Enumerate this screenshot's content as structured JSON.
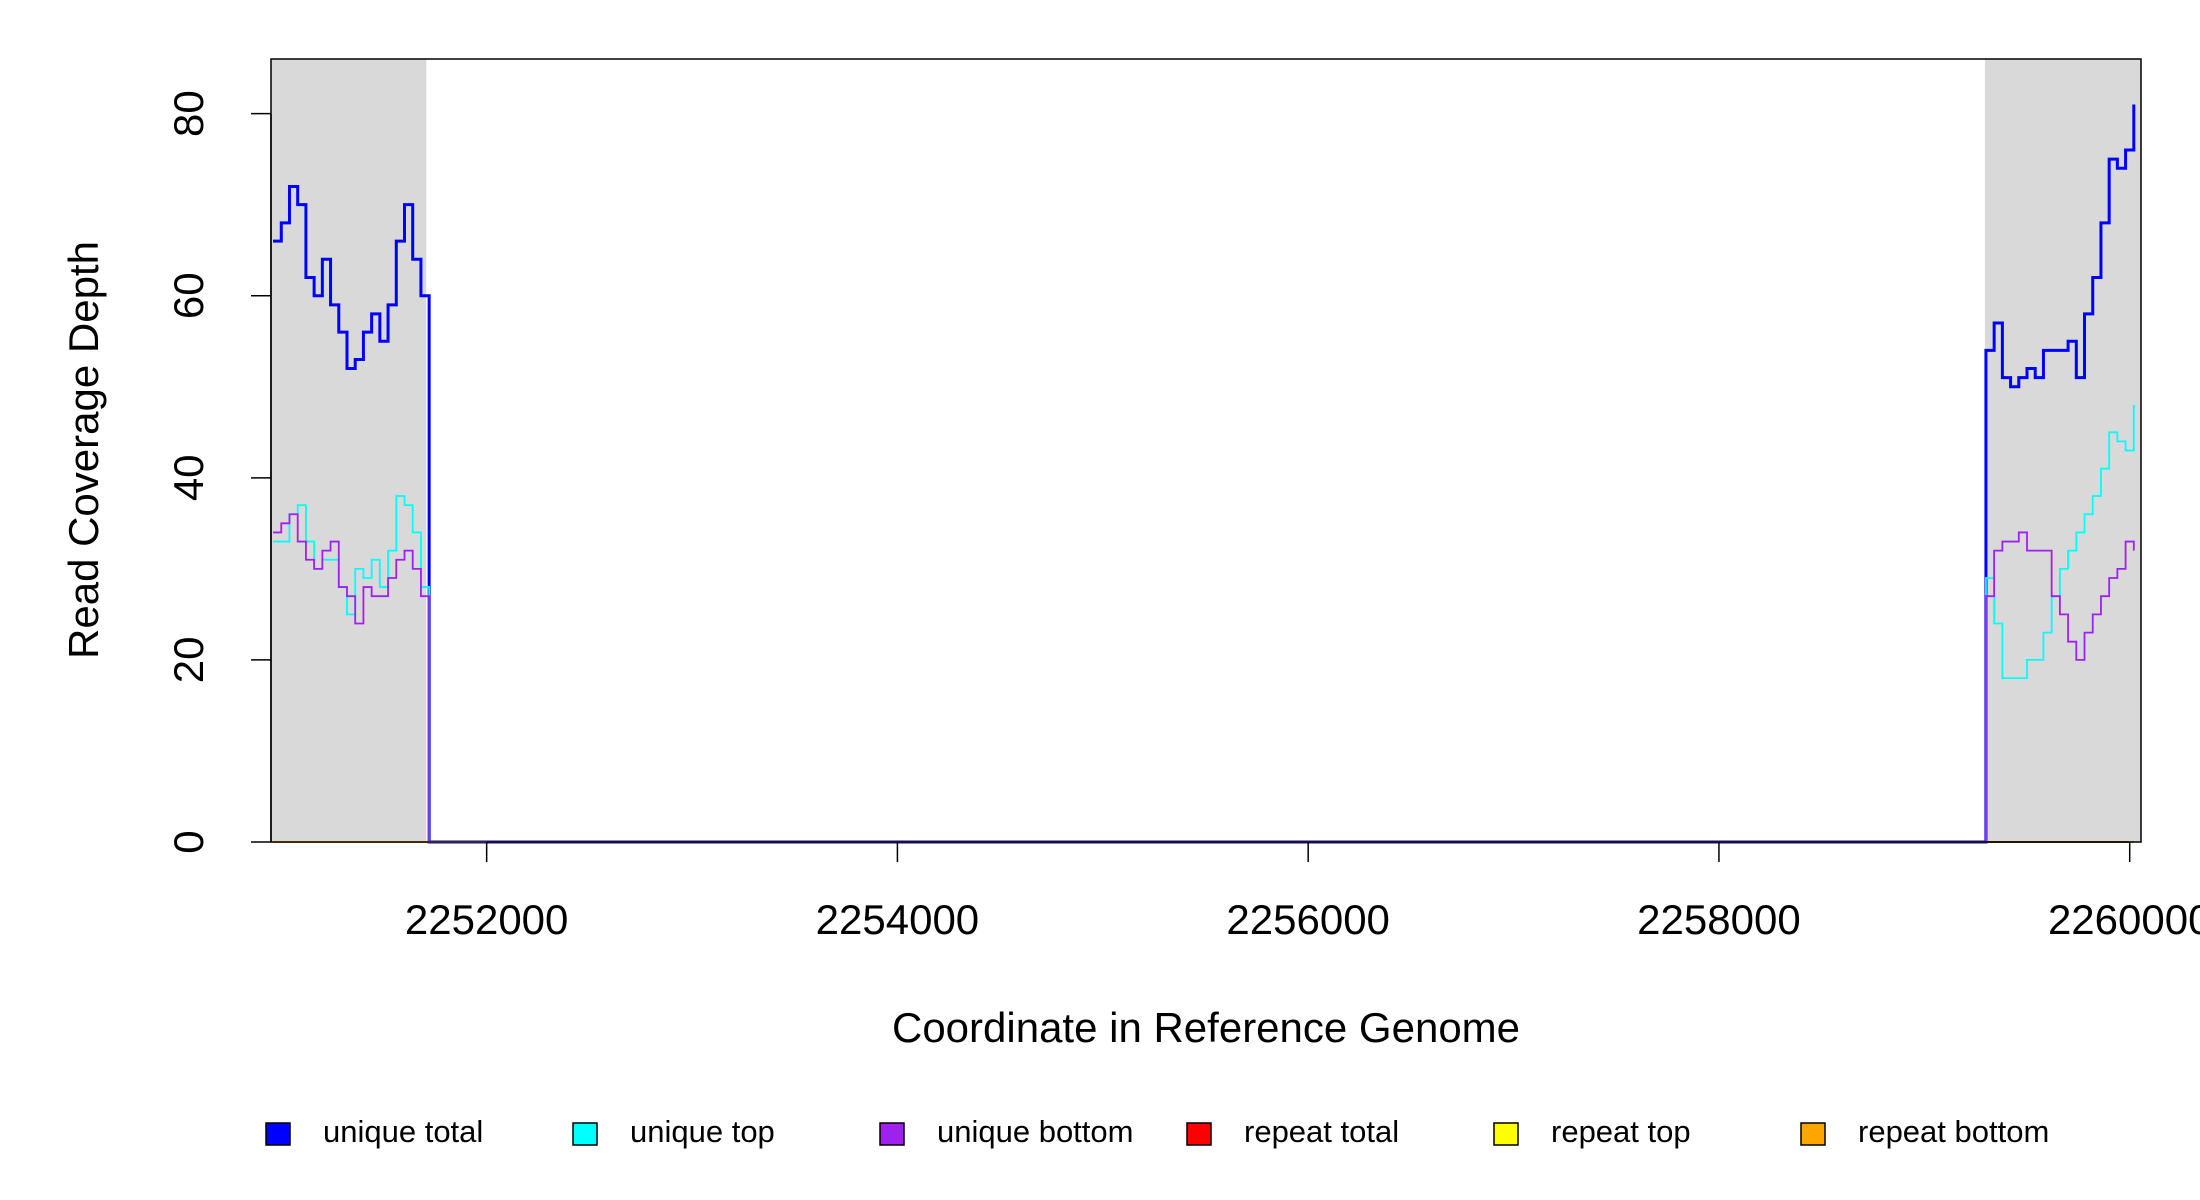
{
  "chart_data": {
    "type": "step",
    "x_label": "Coordinate in Reference Genome",
    "y_label": "Read Coverage Depth",
    "xlim": [
      2250950,
      2260055
    ],
    "ylim": [
      0,
      86
    ],
    "xticks": [
      2252000,
      2254000,
      2256000,
      2258000,
      2260000
    ],
    "yticks": [
      0,
      20,
      40,
      60,
      80
    ],
    "shaded_regions": [
      [
        2250950,
        2251706
      ],
      [
        2259295,
        2260055
      ]
    ],
    "shade_color": "#d9d9d9",
    "legend": "bottom",
    "x": [
      2250960,
      2251000,
      2251040,
      2251080,
      2251120,
      2251160,
      2251200,
      2251240,
      2251280,
      2251320,
      2251360,
      2251400,
      2251440,
      2251480,
      2251520,
      2251560,
      2251600,
      2251640,
      2251680,
      2251720,
      2259280,
      2259300,
      2259340,
      2259380,
      2259420,
      2259460,
      2259500,
      2259540,
      2259580,
      2259620,
      2259660,
      2259700,
      2259740,
      2259780,
      2259820,
      2259860,
      2259900,
      2259940,
      2259980,
      2260020
    ],
    "series": [
      {
        "name": "unique total",
        "color": "#0000ff",
        "values": [
          66,
          68,
          72,
          70,
          62,
          60,
          64,
          59,
          56,
          52,
          53,
          56,
          58,
          55,
          59,
          66,
          70,
          64,
          60,
          0,
          0,
          54,
          57,
          51,
          50,
          51,
          52,
          51,
          54,
          54,
          54,
          55,
          51,
          58,
          62,
          68,
          75,
          74,
          76,
          81
        ]
      },
      {
        "name": "unique top",
        "color": "#00ffff",
        "values": [
          33,
          33,
          36,
          37,
          33,
          30,
          31,
          31,
          28,
          25,
          30,
          29,
          31,
          28,
          32,
          38,
          37,
          34,
          28,
          0,
          0,
          29,
          24,
          18,
          18,
          18,
          20,
          20,
          23,
          27,
          30,
          32,
          34,
          36,
          38,
          41,
          45,
          44,
          43,
          48
        ]
      },
      {
        "name": "unique bottom",
        "color": "#a020f0",
        "values": [
          34,
          35,
          36,
          33,
          31,
          30,
          32,
          33,
          28,
          27,
          24,
          28,
          27,
          27,
          29,
          31,
          32,
          30,
          27,
          0,
          0,
          27,
          32,
          33,
          33,
          34,
          32,
          32,
          32,
          27,
          25,
          22,
          20,
          23,
          25,
          27,
          29,
          30,
          33,
          32
        ]
      },
      {
        "name": "repeat total",
        "color": "#ff0000",
        "values": [
          0,
          0,
          0,
          0,
          0,
          0,
          0,
          0,
          0,
          0,
          0,
          0,
          0,
          0,
          0,
          0,
          0,
          0,
          0,
          0,
          0,
          0,
          0,
          0,
          0,
          0,
          0,
          0,
          0,
          0,
          0,
          0,
          0,
          0,
          0,
          0,
          0,
          0,
          0,
          0
        ]
      },
      {
        "name": "repeat top",
        "color": "#ffff00",
        "values": [
          0,
          0,
          0,
          0,
          0,
          0,
          0,
          0,
          0,
          0,
          0,
          0,
          0,
          0,
          0,
          0,
          0,
          0,
          0,
          0,
          0,
          0,
          0,
          0,
          0,
          0,
          0,
          0,
          0,
          0,
          0,
          0,
          0,
          0,
          0,
          0,
          0,
          0,
          0,
          0
        ]
      },
      {
        "name": "repeat bottom",
        "color": "#ffa500",
        "values": [
          0,
          0,
          0,
          0,
          0,
          0,
          0,
          0,
          0,
          0,
          0,
          0,
          0,
          0,
          0,
          0,
          0,
          0,
          0,
          0,
          0,
          0,
          0,
          0,
          0,
          0,
          0,
          0,
          0,
          0,
          0,
          0,
          0,
          0,
          0,
          0,
          0,
          0,
          0,
          0
        ]
      }
    ]
  }
}
